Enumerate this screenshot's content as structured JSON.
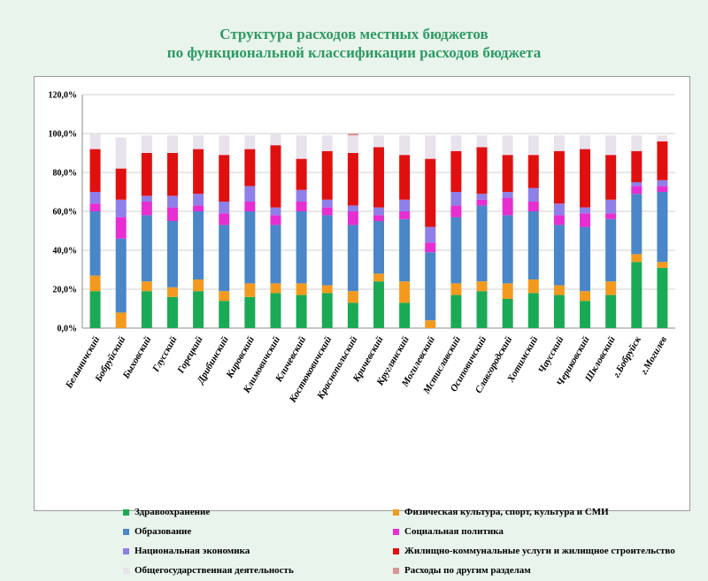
{
  "title_line1": "Структура расходов местных бюджетов",
  "title_line2": "по функциональной классификации расходов бюджета",
  "chart_data": {
    "type": "bar",
    "stacked": true,
    "ylim": [
      0,
      120
    ],
    "yticks": [
      "0,0%",
      "20,0%",
      "40,0%",
      "60,0%",
      "80,0%",
      "100,0%",
      "120,0%"
    ],
    "grid": true,
    "legend_position": "bottom",
    "categories": [
      "Белыничский",
      "Бобруйский",
      "Быховский",
      "Глусский",
      "Горецкий",
      "Дрибинский",
      "Кировский",
      "Климовичский",
      "Кличевский",
      "Костюковичский",
      "Краснопольский",
      "Кричевский",
      "Круглянский",
      "Могилевский",
      "Мстиславский",
      "Осиповичский",
      "Славгородский",
      "Хотимский",
      "Чаусский",
      "Чериковский",
      "Шкловский",
      "г.Бобруйск",
      "г.Могилев"
    ],
    "series": [
      {
        "name": "Здравоохранение",
        "color": "#1aaa55",
        "values": [
          19,
          0,
          19,
          16,
          19,
          14,
          16,
          18,
          17,
          18,
          13,
          24,
          13,
          0,
          17,
          19,
          15,
          18,
          17,
          14,
          17,
          34,
          31
        ]
      },
      {
        "name": "Физическая культура, спорт, культура и СМИ",
        "color": "#f39a1e",
        "values": [
          8,
          8,
          5,
          5,
          6,
          5,
          7,
          5,
          6,
          4,
          6,
          4,
          11,
          4,
          6,
          5,
          8,
          7,
          5,
          5,
          7,
          4,
          3
        ]
      },
      {
        "name": "Образование",
        "color": "#4a86c8",
        "values": [
          33,
          38,
          34,
          34,
          35,
          34,
          37,
          30,
          37,
          36,
          34,
          27,
          32,
          35,
          34,
          39,
          35,
          35,
          31,
          33,
          32,
          31,
          36
        ]
      },
      {
        "name": "Социальная политика",
        "color": "#e62ed1",
        "values": [
          4,
          11,
          7,
          7,
          3,
          6,
          5,
          5,
          5,
          4,
          7,
          3,
          4,
          5,
          6,
          3,
          9,
          5,
          5,
          7,
          3,
          4,
          3
        ]
      },
      {
        "name": "Национальная экономика",
        "color": "#8f7fe8",
        "values": [
          6,
          9,
          3,
          6,
          6,
          6,
          8,
          4,
          6,
          4,
          3,
          4,
          6,
          8,
          7,
          3,
          3,
          7,
          6,
          3,
          7,
          2,
          3
        ]
      },
      {
        "name": "Жилищно-коммунальные услуги и жилищное строительство",
        "color": "#e11010",
        "values": [
          22,
          16,
          22,
          22,
          23,
          24,
          19,
          32,
          16,
          25,
          27,
          31,
          23,
          35,
          21,
          24,
          19,
          17,
          27,
          30,
          23,
          16,
          20
        ]
      },
      {
        "name": "Общегосударственная деятельность",
        "color": "#e8e2ec",
        "values": [
          8,
          16,
          9,
          9,
          7,
          10,
          7,
          6,
          12,
          8,
          9,
          6,
          10,
          12,
          8,
          6,
          10,
          10,
          8,
          7,
          10,
          8,
          3
        ]
      },
      {
        "name": "Расходы по другим разделам",
        "color": "#d99696",
        "values": [
          0,
          0,
          0,
          0,
          0,
          0,
          0,
          0,
          0,
          0,
          1,
          0,
          0,
          0,
          0,
          0,
          0,
          0,
          0,
          0,
          0,
          0,
          0
        ]
      }
    ]
  }
}
